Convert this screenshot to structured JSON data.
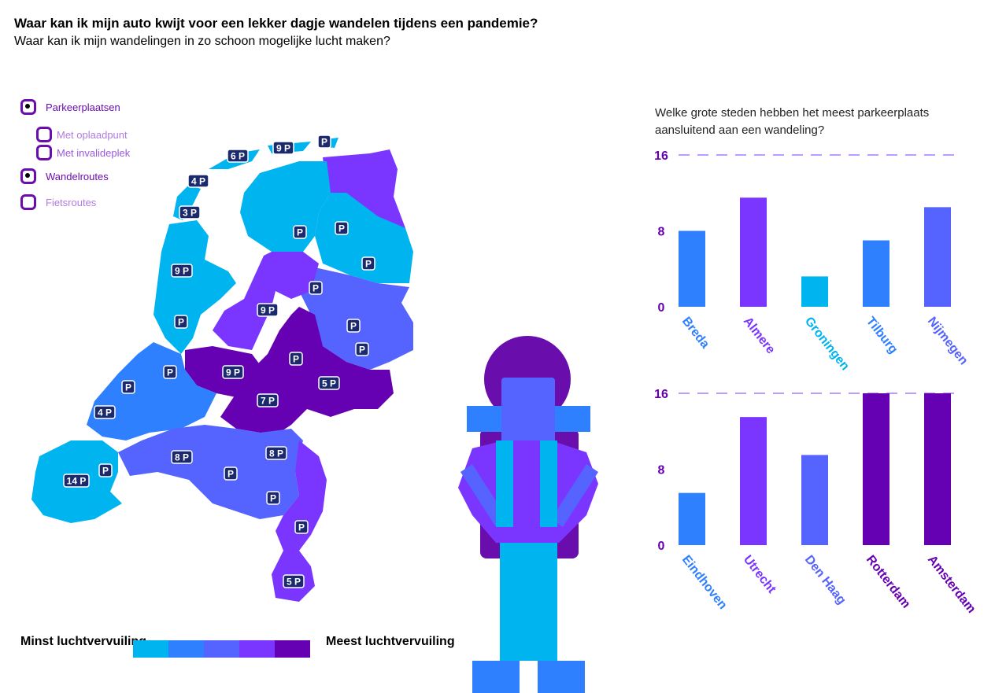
{
  "title": "Waar kan ik mijn auto kwijt voor een lekker dagje wandelen tijdens een pandemie?",
  "subtitle": "Waar kan ik mijn wandelingen in zo schoon mogelijke lucht maken?",
  "legend": [
    {
      "label": "Parkeerplaatsen",
      "color": "#6a0dad",
      "filled": true
    },
    {
      "label": "Met oplaadpunt",
      "color": "#b07ce0",
      "filled": false
    },
    {
      "label": "Met invalideplek",
      "color": "#9b59e0",
      "filled": false
    },
    {
      "label": "Wandelroutes",
      "color": "#6a0dad",
      "filled": true
    },
    {
      "label": "Fietsroutes",
      "color": "#b07ce0",
      "filled": false
    }
  ],
  "map_markers": [
    "9 P",
    "P",
    "6 P",
    "4 P",
    "3 P",
    "P",
    "P",
    "P",
    "9 P",
    "P",
    "P",
    "9 P",
    "P",
    "9 P",
    "P",
    "7 P",
    "5 P",
    "P",
    "P",
    "P",
    "4 P",
    "8 P",
    "8 P",
    "P",
    "P",
    "14 P",
    "P",
    "P",
    "5 P"
  ],
  "scale": {
    "low_label": "Minst luchtvervuiling",
    "high_label": "Meest luchtvervuiling",
    "colors": [
      "#00b4f0",
      "#2f80ff",
      "#5563ff",
      "#7a35ff",
      "#6600b3"
    ]
  },
  "chart_question": "Welke grote steden hebben het meest parkeerplaats aansluitend aan een wandeling?",
  "chart_data": [
    {
      "type": "bar",
      "categories": [
        "Breda",
        "Almere",
        "Groningen",
        "Tilburg",
        "Nijmegen"
      ],
      "values": [
        8,
        11.5,
        3.2,
        7,
        10.5
      ],
      "colors": [
        "#2f80ff",
        "#7a35ff",
        "#00b4f0",
        "#2f80ff",
        "#5563ff"
      ],
      "yticks": [
        0,
        8,
        16
      ],
      "ylim": [
        0,
        16
      ]
    },
    {
      "type": "bar",
      "categories": [
        "Eindhoven",
        "Utrecht",
        "Den Haag",
        "Rotterdam",
        "Amsterdam"
      ],
      "values": [
        5.5,
        13.5,
        9.5,
        16,
        16
      ],
      "colors": [
        "#2f80ff",
        "#7a35ff",
        "#5563ff",
        "#6600b3",
        "#6600b3"
      ],
      "yticks": [
        0,
        8,
        16
      ],
      "ylim": [
        0,
        16
      ]
    }
  ]
}
